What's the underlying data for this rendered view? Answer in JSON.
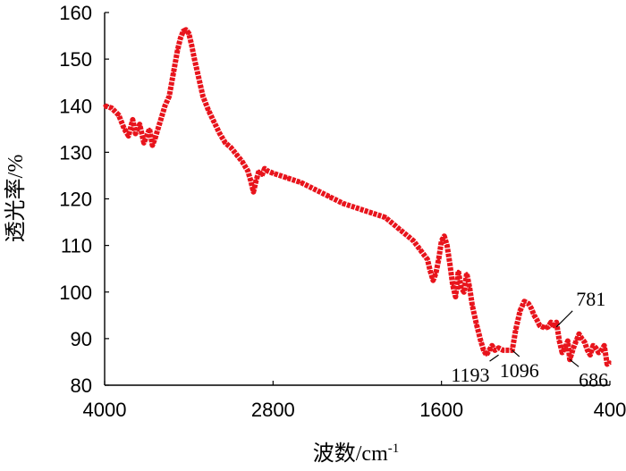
{
  "chart_data": {
    "type": "line",
    "title": "",
    "xlabel": "波数/cm",
    "xlabel_sup": "-1",
    "ylabel": "透光率/%",
    "xlim": [
      4000,
      400
    ],
    "ylim": [
      80,
      160
    ],
    "x_reversed": true,
    "grid": false,
    "legend": "none",
    "x_ticks": [
      "4000",
      "2800",
      "1600",
      "400"
    ],
    "y_ticks": [
      "80",
      "90",
      "100",
      "110",
      "120",
      "130",
      "140",
      "150",
      "160"
    ],
    "series": [
      {
        "color": "#e8141c",
        "x": [
          4000,
          3950,
          3900,
          3860,
          3830,
          3800,
          3780,
          3750,
          3720,
          3700,
          3680,
          3660,
          3640,
          3620,
          3600,
          3570,
          3540,
          3510,
          3480,
          3460,
          3440,
          3420,
          3400,
          3380,
          3360,
          3330,
          3300,
          3260,
          3220,
          3180,
          3140,
          3100,
          3060,
          3020,
          2980,
          2960,
          2940,
          2920,
          2900,
          2880,
          2860,
          2840,
          2800,
          2700,
          2600,
          2500,
          2400,
          2300,
          2200,
          2100,
          2000,
          1900,
          1800,
          1750,
          1700,
          1680,
          1660,
          1640,
          1620,
          1600,
          1580,
          1560,
          1540,
          1520,
          1500,
          1480,
          1460,
          1440,
          1420,
          1400,
          1380,
          1350,
          1320,
          1300,
          1280,
          1260,
          1240,
          1220,
          1193,
          1160,
          1130,
          1096,
          1070,
          1040,
          1010,
          980,
          960,
          940,
          920,
          900,
          880,
          860,
          840,
          820,
          800,
          781,
          760,
          740,
          720,
          700,
          686,
          660,
          640,
          620,
          600,
          580,
          560,
          540,
          520,
          500,
          480,
          460,
          440,
          420,
          400
        ],
        "y": [
          140,
          139.5,
          138,
          135,
          133.5,
          137,
          134,
          136,
          132,
          133.5,
          135,
          131.5,
          133,
          135,
          137,
          140,
          142,
          147,
          152,
          154.5,
          156,
          156.3,
          155.5,
          153,
          150,
          146,
          142,
          139,
          136.5,
          134,
          132,
          131,
          129.5,
          128,
          126,
          124,
          121.5,
          124,
          126,
          125,
          126.5,
          126,
          125.5,
          124.5,
          123.5,
          122,
          120.5,
          119,
          118,
          117,
          116,
          113.5,
          111,
          109,
          107,
          104.5,
          102.5,
          104,
          107,
          111,
          112,
          110,
          106,
          101.5,
          99,
          104.5,
          101,
          100,
          104,
          101,
          97,
          93,
          89.5,
          87.5,
          86.5,
          87.5,
          88.5,
          87.5,
          88,
          87.5,
          87.5,
          87.5,
          92,
          96,
          98,
          97.5,
          96.5,
          95,
          94,
          92.8,
          92.5,
          92.3,
          92.5,
          93.5,
          92.5,
          93.5,
          89.5,
          87,
          88,
          89.5,
          85.5,
          88,
          89.5,
          91,
          90,
          89.2,
          87.5,
          86.5,
          88.5,
          88,
          87,
          87.5,
          88.5,
          84.5,
          85
        ]
      }
    ],
    "annotations": [
      {
        "text": "781",
        "x": 781,
        "y": 92.5
      },
      {
        "text": "1193",
        "x": 1193,
        "y": 86.5
      },
      {
        "text": "1096",
        "x": 1096,
        "y": 87.5
      },
      {
        "text": "686",
        "x": 686,
        "y": 85.5
      }
    ]
  }
}
